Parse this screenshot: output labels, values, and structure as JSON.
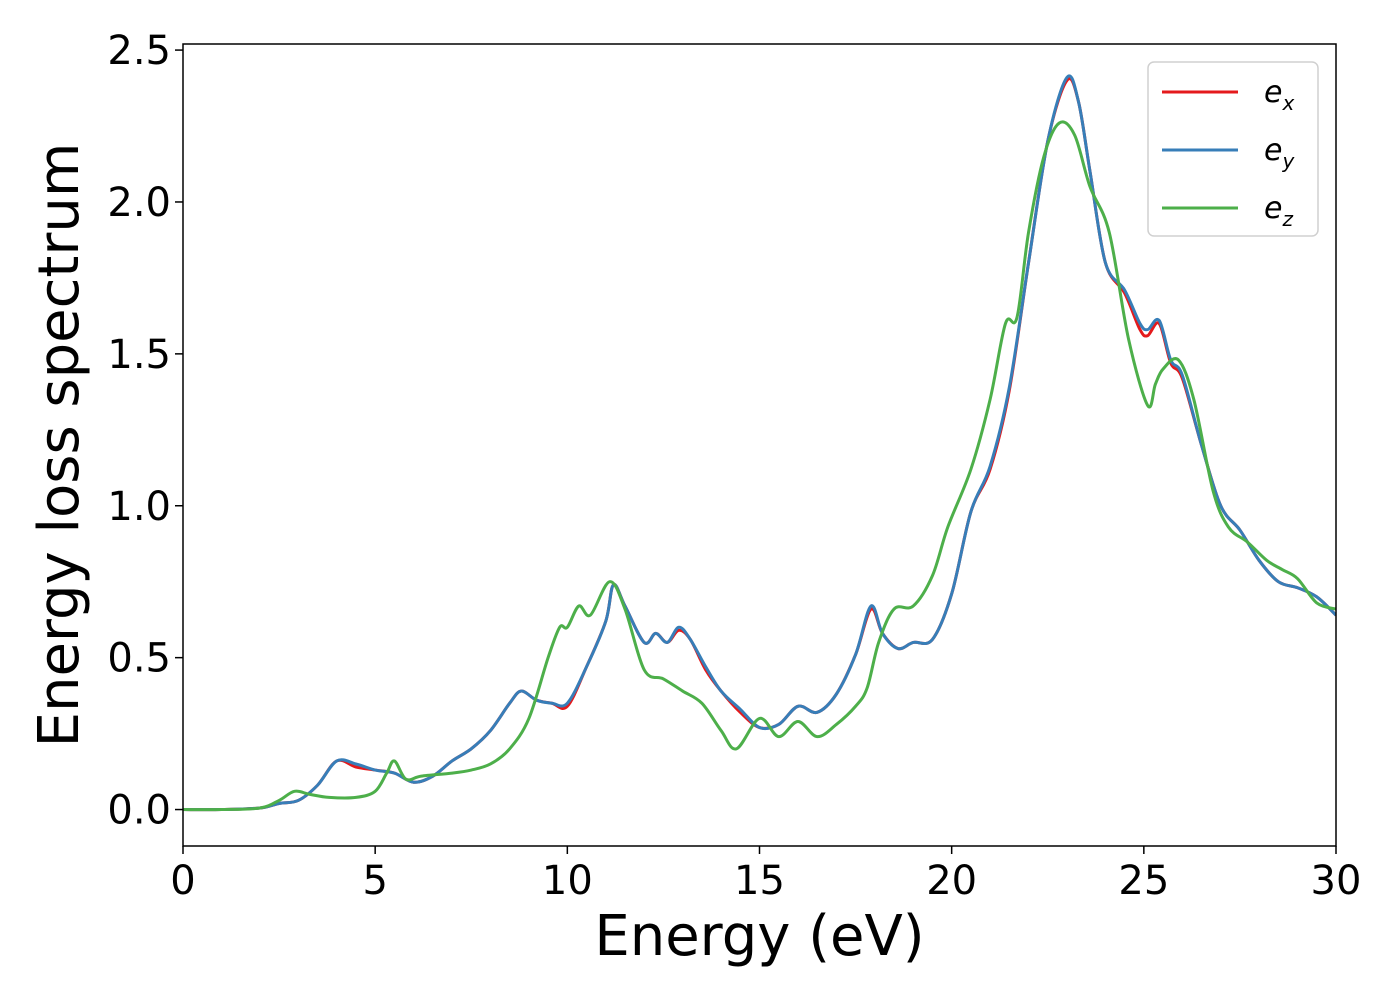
{
  "chart_data": {
    "type": "line",
    "title": "",
    "xlabel": "Energy (eV)",
    "ylabel": "Energy loss spectrum",
    "xlim": [
      0,
      30
    ],
    "ylim": [
      -0.12,
      2.52
    ],
    "xticks": [
      0,
      5,
      10,
      15,
      20,
      25,
      30
    ],
    "xtick_labels": [
      "0",
      "5",
      "10",
      "15",
      "20",
      "25",
      "30"
    ],
    "yticks": [
      0.0,
      0.5,
      1.0,
      1.5,
      2.0,
      2.5
    ],
    "ytick_labels": [
      "0.0",
      "0.5",
      "1.0",
      "1.5",
      "2.0",
      "2.5"
    ],
    "grid": false,
    "legend_position": "top-right",
    "series": [
      {
        "name_base": "e",
        "name_sub": "x",
        "color": "#e41a1c",
        "x": [
          0,
          1,
          2,
          2.5,
          3,
          3.5,
          4,
          4.5,
          5,
          5.5,
          6,
          6.5,
          7,
          7.5,
          8,
          8.5,
          8.8,
          9.2,
          9.6,
          10,
          10.5,
          11,
          11.2,
          11.5,
          12,
          12.3,
          12.6,
          12.9,
          13.2,
          13.6,
          14,
          14.5,
          15,
          15.5,
          16,
          16.5,
          17,
          17.5,
          17.9,
          18.2,
          18.6,
          19,
          19.5,
          20,
          20.5,
          21,
          21.5,
          22,
          22.5,
          23,
          23.3,
          23.6,
          24,
          24.5,
          24.9,
          25.1,
          25.4,
          25.7,
          26,
          26.5,
          27,
          27.5,
          28,
          28.5,
          29,
          29.5,
          30
        ],
        "y": [
          0,
          0,
          0.005,
          0.02,
          0.03,
          0.08,
          0.16,
          0.14,
          0.13,
          0.12,
          0.09,
          0.11,
          0.16,
          0.2,
          0.26,
          0.35,
          0.39,
          0.36,
          0.35,
          0.34,
          0.47,
          0.62,
          0.74,
          0.67,
          0.55,
          0.58,
          0.55,
          0.59,
          0.56,
          0.46,
          0.39,
          0.32,
          0.27,
          0.28,
          0.34,
          0.32,
          0.38,
          0.51,
          0.66,
          0.58,
          0.53,
          0.55,
          0.56,
          0.71,
          0.98,
          1.12,
          1.38,
          1.8,
          2.2,
          2.4,
          2.33,
          2.1,
          1.8,
          1.7,
          1.58,
          1.56,
          1.6,
          1.47,
          1.42,
          1.2,
          1.0,
          0.92,
          0.82,
          0.75,
          0.73,
          0.7,
          0.64
        ]
      },
      {
        "name_base": "e",
        "name_sub": "y",
        "color": "#377eb8",
        "x": [
          0,
          1,
          2,
          2.5,
          3,
          3.5,
          4,
          4.5,
          5,
          5.5,
          6,
          6.5,
          7,
          7.5,
          8,
          8.5,
          8.8,
          9.2,
          9.6,
          10,
          10.5,
          11,
          11.2,
          11.5,
          12,
          12.3,
          12.6,
          12.9,
          13.2,
          13.6,
          14,
          14.5,
          15,
          15.5,
          16,
          16.5,
          17,
          17.5,
          17.9,
          18.2,
          18.6,
          19,
          19.5,
          20,
          20.5,
          21,
          21.5,
          22,
          22.5,
          23,
          23.3,
          23.6,
          24,
          24.5,
          24.9,
          25.1,
          25.4,
          25.7,
          26,
          26.5,
          27,
          27.5,
          28,
          28.5,
          29,
          29.5,
          30
        ],
        "y": [
          0,
          0,
          0.005,
          0.02,
          0.03,
          0.08,
          0.16,
          0.15,
          0.13,
          0.12,
          0.09,
          0.11,
          0.16,
          0.2,
          0.26,
          0.35,
          0.39,
          0.36,
          0.35,
          0.35,
          0.47,
          0.62,
          0.74,
          0.67,
          0.55,
          0.58,
          0.55,
          0.6,
          0.56,
          0.47,
          0.39,
          0.33,
          0.27,
          0.28,
          0.34,
          0.32,
          0.38,
          0.51,
          0.67,
          0.58,
          0.53,
          0.55,
          0.56,
          0.71,
          0.98,
          1.13,
          1.39,
          1.8,
          2.2,
          2.41,
          2.33,
          2.1,
          1.8,
          1.71,
          1.6,
          1.58,
          1.61,
          1.48,
          1.43,
          1.2,
          1.0,
          0.92,
          0.82,
          0.75,
          0.73,
          0.7,
          0.64
        ]
      },
      {
        "name_base": "e",
        "name_sub": "z",
        "color": "#4daf4a",
        "x": [
          0,
          1,
          2,
          2.5,
          2.9,
          3.3,
          3.8,
          4.5,
          5,
          5.3,
          5.5,
          5.8,
          6.2,
          7,
          7.5,
          8,
          8.5,
          9,
          9.5,
          9.8,
          10,
          10.3,
          10.6,
          11.1,
          11.5,
          12,
          12.5,
          13,
          13.5,
          14,
          14.4,
          15,
          15.5,
          16,
          16.5,
          17,
          17.5,
          17.8,
          18.1,
          18.5,
          19,
          19.5,
          19.9,
          20.5,
          21,
          21.4,
          21.7,
          22,
          22.4,
          22.8,
          23.2,
          23.6,
          24.1,
          24.6,
          25.1,
          25.3,
          25.5,
          25.9,
          26.3,
          26.8,
          27.2,
          27.7,
          28.2,
          28.6,
          29,
          29.5,
          30
        ],
        "y": [
          0,
          0,
          0.005,
          0.03,
          0.06,
          0.05,
          0.04,
          0.04,
          0.06,
          0.12,
          0.16,
          0.1,
          0.11,
          0.12,
          0.13,
          0.15,
          0.2,
          0.3,
          0.5,
          0.6,
          0.6,
          0.67,
          0.64,
          0.75,
          0.66,
          0.46,
          0.43,
          0.39,
          0.35,
          0.26,
          0.2,
          0.3,
          0.24,
          0.29,
          0.24,
          0.28,
          0.34,
          0.4,
          0.55,
          0.66,
          0.67,
          0.77,
          0.93,
          1.12,
          1.35,
          1.6,
          1.62,
          1.9,
          2.15,
          2.26,
          2.22,
          2.05,
          1.9,
          1.55,
          1.33,
          1.4,
          1.45,
          1.48,
          1.35,
          1.05,
          0.93,
          0.88,
          0.82,
          0.79,
          0.76,
          0.68,
          0.66
        ]
      }
    ]
  }
}
